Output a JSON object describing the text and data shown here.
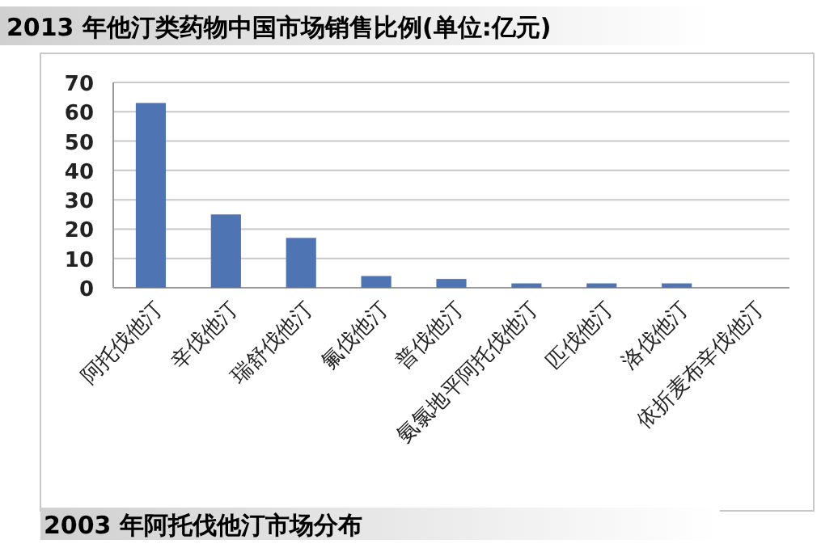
{
  "chart_data": {
    "type": "bar",
    "title": "2013 年他汀类药物中国市场销售比例(单位:亿元)",
    "categories": [
      "阿托伐他汀",
      "辛伐他汀",
      "瑞舒伐他汀",
      "氟伐他汀",
      "普伐他汀",
      "氨氯地平阿托伐他汀",
      "匹伐他汀",
      "洛伐他汀",
      "依折麦布辛伐他汀"
    ],
    "values": [
      63,
      25,
      17,
      4,
      3,
      1.5,
      1.5,
      1.5,
      0
    ],
    "color": "#4f74b4",
    "ylim": [
      0,
      70
    ],
    "yticks": [
      0,
      10,
      20,
      30,
      40,
      50,
      60,
      70
    ],
    "grid": "y",
    "annotations": [
      "2003 年阿托伐他汀市场分布"
    ]
  }
}
